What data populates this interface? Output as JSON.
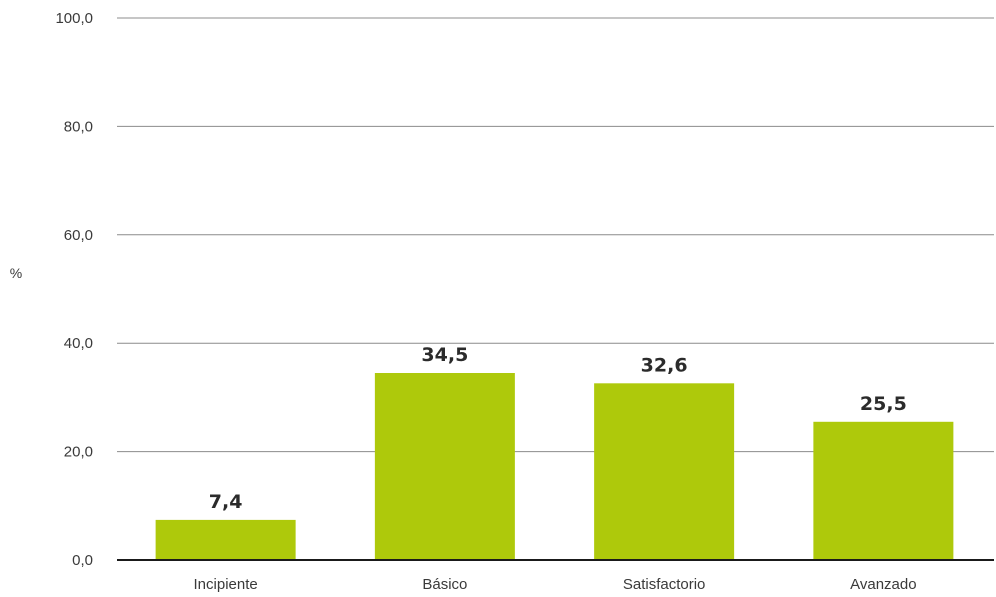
{
  "chart_data": {
    "type": "bar",
    "categories": [
      "Incipiente",
      "Básico",
      "Satisfactorio",
      "Avanzado"
    ],
    "values": [
      7.4,
      34.5,
      32.6,
      25.5
    ],
    "value_labels": [
      "7,4",
      "34,5",
      "32,6",
      "25,5"
    ],
    "title": "",
    "xlabel": "",
    "ylabel": "%",
    "ylim": [
      0,
      100
    ],
    "yticks": [
      0,
      20,
      40,
      60,
      80,
      100
    ],
    "ytick_labels": [
      "0,0",
      "20,0",
      "40,0",
      "60,0",
      "80,0",
      "100,0"
    ],
    "grid": true,
    "legend": "none",
    "colors": {
      "bar": "#aec90b",
      "grid": "#8c8c8c",
      "baseline": "#1a1a1a",
      "text": "#3a3a3a"
    }
  }
}
